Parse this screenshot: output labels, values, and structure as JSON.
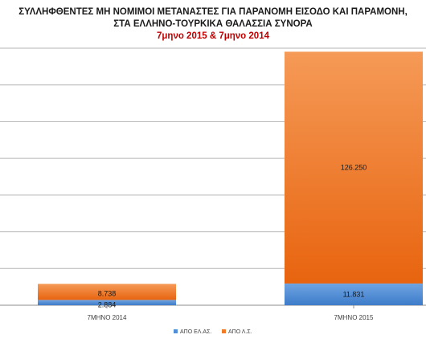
{
  "chart_data": {
    "type": "bar",
    "stacked": true,
    "title_lines": [
      "ΣΥΛΛΗΦΘΕΝΤΕΣ ΜΗ ΝΟΜΙΜΟΙ ΜΕΤΑΝΑΣΤΕΣ ΓΙΑ ΠΑΡΑΝΟΜΗ ΕΙΣΟΔΟ ΚΑΙ ΠΑΡΑΜΟΝΗ,",
      "ΣΤΑ ΕΛΛΗΝΟ-ΤΟΥΡΚΙΚΑ ΘΑΛΑΣΣΙΑ ΣΥΝΟΡΑ"
    ],
    "subtitle": "7μηνο 2015 & 7μηνο 2014",
    "categories": [
      "7ΜΗΝΟ 2014",
      "7ΜΗΝΟ 2015"
    ],
    "series": [
      {
        "name": "ΑΠΟ ΕΛ.ΑΣ.",
        "values": [
          2884,
          11831
        ],
        "labels": [
          "2.884",
          "11.831"
        ],
        "color": "#4f8fd8"
      },
      {
        "name": "ΑΠΟ Λ.Σ.",
        "values": [
          8738,
          126250
        ],
        "labels": [
          "8.738",
          "126.250"
        ],
        "color": "#f07a26"
      }
    ],
    "ylim": [
      0,
      140000
    ],
    "y_gridline_step": 20000,
    "y_tick_labels_visible": false,
    "grid": true,
    "legend": "bottom-center"
  }
}
